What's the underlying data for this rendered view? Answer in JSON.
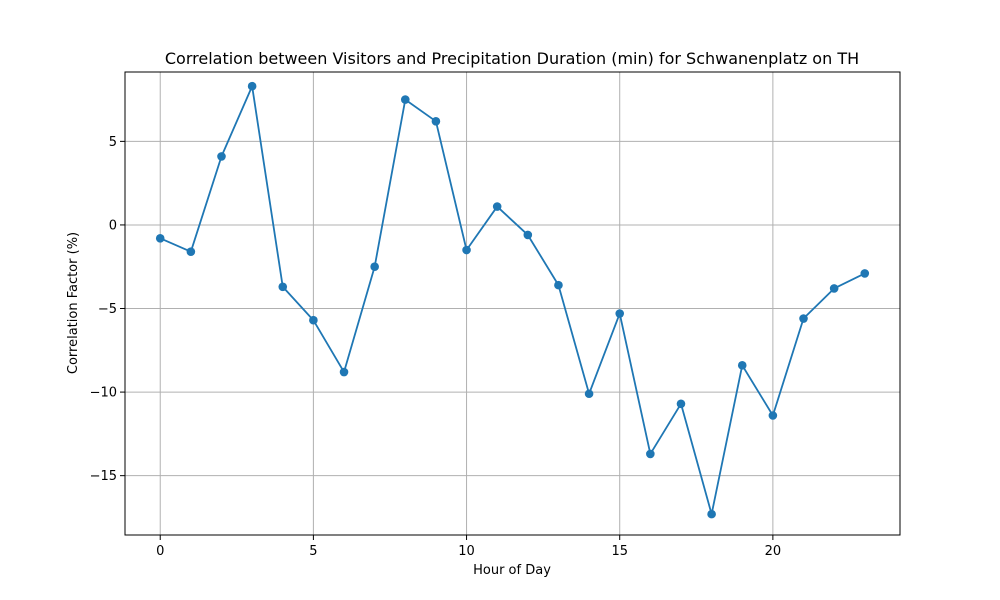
{
  "chart_data": {
    "type": "line",
    "title": "Correlation between Visitors and Precipitation Duration (min) for Schwanenplatz on TH",
    "xlabel": "Hour of Day",
    "ylabel": "Correlation Factor (%)",
    "xlim": [
      -1.15,
      24.15
    ],
    "ylim": [
      -18.55,
      9.15
    ],
    "x_ticks": [
      0,
      5,
      10,
      15,
      20
    ],
    "x_tick_labels": [
      "0",
      "5",
      "10",
      "15",
      "20"
    ],
    "y_ticks": [
      5,
      0,
      -5,
      -10,
      -15
    ],
    "y_tick_labels": [
      "5",
      "0",
      "−5",
      "−10",
      "−15"
    ],
    "grid": true,
    "legend": "none",
    "series": [
      {
        "color": "#1f77b4",
        "marker": "circle",
        "x": [
          0,
          1,
          2,
          3,
          4,
          5,
          6,
          7,
          8,
          9,
          10,
          11,
          12,
          13,
          14,
          15,
          16,
          17,
          18,
          19,
          20,
          21,
          22,
          23
        ],
        "y": [
          -0.8,
          -1.6,
          4.1,
          8.3,
          -3.7,
          -5.7,
          -8.8,
          -2.5,
          7.5,
          6.2,
          -1.5,
          1.1,
          -0.6,
          -3.6,
          -10.1,
          -5.3,
          -13.7,
          -10.7,
          -17.3,
          -8.4,
          -11.4,
          -5.6,
          -3.8,
          -2.9
        ]
      }
    ]
  }
}
